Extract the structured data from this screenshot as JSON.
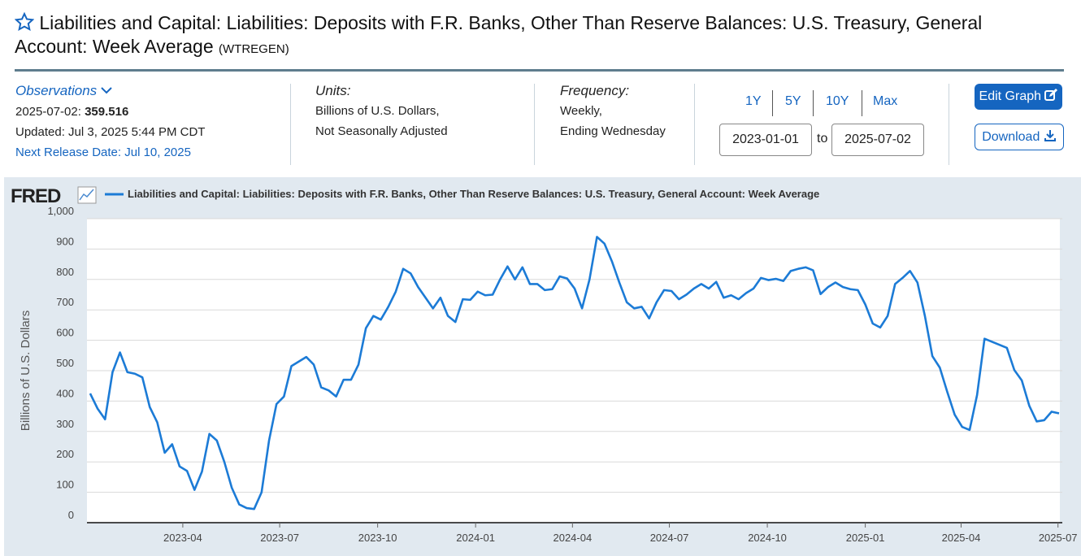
{
  "header": {
    "title": "Liabilities and Capital: Liabilities: Deposits with F.R. Banks, Other Than Reserve Balances: U.S. Treasury, General Account: Week Average",
    "series_id": "(WTREGEN)"
  },
  "meta": {
    "observations_label": "Observations",
    "latest_date": "2025-07-02:",
    "latest_value": "359.516",
    "updated": "Updated: Jul 3, 2025 5:44 PM CDT",
    "next_release": "Next Release Date: Jul 10, 2025",
    "units_label": "Units:",
    "units": [
      "Billions of U.S. Dollars,",
      "Not Seasonally Adjusted"
    ],
    "frequency_label": "Frequency:",
    "frequency": [
      "Weekly,",
      "Ending Wednesday"
    ]
  },
  "controls": {
    "ranges": [
      "1Y",
      "5Y",
      "10Y",
      "Max"
    ],
    "start": "2023-01-01",
    "to": "to",
    "end": "2025-07-02",
    "edit": "Edit Graph",
    "download": "Download"
  },
  "chart_data": {
    "type": "line",
    "logo": "FRED",
    "ylabel": "Billions of U.S. Dollars",
    "grid": true,
    "x": [
      "2023-01-04",
      "2023-01-11",
      "2023-01-18",
      "2023-01-25",
      "2023-02-01",
      "2023-02-08",
      "2023-02-15",
      "2023-02-22",
      "2023-03-01",
      "2023-03-08",
      "2023-03-15",
      "2023-03-22",
      "2023-03-29",
      "2023-04-05",
      "2023-04-12",
      "2023-04-19",
      "2023-04-26",
      "2023-05-03",
      "2023-05-10",
      "2023-05-17",
      "2023-05-24",
      "2023-05-31",
      "2023-06-07",
      "2023-06-14",
      "2023-06-21",
      "2023-06-28",
      "2023-07-05",
      "2023-07-12",
      "2023-07-19",
      "2023-07-26",
      "2023-08-02",
      "2023-08-09",
      "2023-08-16",
      "2023-08-23",
      "2023-08-30",
      "2023-09-06",
      "2023-09-13",
      "2023-09-20",
      "2023-09-27",
      "2023-10-04",
      "2023-10-11",
      "2023-10-18",
      "2023-10-25",
      "2023-11-01",
      "2023-11-08",
      "2023-11-15",
      "2023-11-22",
      "2023-11-29",
      "2023-12-06",
      "2023-12-13",
      "2023-12-20",
      "2023-12-27",
      "2024-01-03",
      "2024-01-10",
      "2024-01-17",
      "2024-01-24",
      "2024-01-31",
      "2024-02-07",
      "2024-02-14",
      "2024-02-21",
      "2024-02-28",
      "2024-03-06",
      "2024-03-13",
      "2024-03-20",
      "2024-03-27",
      "2024-04-03",
      "2024-04-10",
      "2024-04-17",
      "2024-04-24",
      "2024-05-01",
      "2024-05-08",
      "2024-05-15",
      "2024-05-22",
      "2024-05-29",
      "2024-06-05",
      "2024-06-12",
      "2024-06-19",
      "2024-06-26",
      "2024-07-03",
      "2024-07-10",
      "2024-07-17",
      "2024-07-24",
      "2024-07-31",
      "2024-08-07",
      "2024-08-14",
      "2024-08-21",
      "2024-08-28",
      "2024-09-04",
      "2024-09-11",
      "2024-09-18",
      "2024-09-25",
      "2024-10-02",
      "2024-10-09",
      "2024-10-16",
      "2024-10-23",
      "2024-10-30",
      "2024-11-06",
      "2024-11-13",
      "2024-11-20",
      "2024-11-27",
      "2024-12-04",
      "2024-12-11",
      "2024-12-18",
      "2024-12-25",
      "2025-01-01",
      "2025-01-08",
      "2025-01-15",
      "2025-01-22",
      "2025-01-29",
      "2025-02-05",
      "2025-02-12",
      "2025-02-19",
      "2025-02-26",
      "2025-03-05",
      "2025-03-12",
      "2025-03-19",
      "2025-03-26",
      "2025-04-02",
      "2025-04-09",
      "2025-04-16",
      "2025-04-23",
      "2025-04-30",
      "2025-05-07",
      "2025-05-14",
      "2025-05-21",
      "2025-05-28",
      "2025-06-04",
      "2025-06-11",
      "2025-06-18",
      "2025-06-25",
      "2025-07-02"
    ],
    "series": [
      {
        "name": "Liabilities and Capital: Liabilities: Deposits with F.R. Banks, Other Than Reserve Balances: U.S. Treasury, General Account: Week Average",
        "color": "#1c7bd6",
        "values": [
          425,
          375,
          340,
          495,
          560,
          495,
          490,
          478,
          380,
          330,
          230,
          258,
          185,
          170,
          108,
          168,
          292,
          270,
          200,
          115,
          60,
          48,
          45,
          100,
          270,
          390,
          415,
          515,
          530,
          545,
          520,
          445,
          435,
          415,
          470,
          470,
          520,
          640,
          680,
          668,
          710,
          760,
          835,
          820,
          775,
          740,
          705,
          740,
          680,
          660,
          735,
          733,
          760,
          748,
          750,
          800,
          843,
          800,
          840,
          785,
          785,
          765,
          768,
          810,
          803,
          770,
          705,
          800,
          940,
          918,
          860,
          790,
          725,
          705,
          710,
          672,
          725,
          765,
          762,
          735,
          750,
          770,
          785,
          770,
          792,
          740,
          748,
          735,
          755,
          770,
          805,
          798,
          802,
          795,
          828,
          835,
          840,
          830,
          752,
          775,
          790,
          775,
          768,
          765,
          718,
          655,
          642,
          680,
          785,
          805,
          828,
          790,
          680,
          548,
          510,
          430,
          355,
          315,
          305,
          420,
          605,
          595,
          585,
          575,
          502,
          468,
          385,
          333,
          337,
          365,
          359.516
        ]
      }
    ],
    "xlim": [
      "2023-01-01",
      "2025-07-02"
    ],
    "xticks": [
      {
        "value": "2023-04-01",
        "label": "2023-04"
      },
      {
        "value": "2023-07-01",
        "label": "2023-07"
      },
      {
        "value": "2023-10-01",
        "label": "2023-10"
      },
      {
        "value": "2024-01-01",
        "label": "2024-01"
      },
      {
        "value": "2024-04-01",
        "label": "2024-04"
      },
      {
        "value": "2024-07-01",
        "label": "2024-07"
      },
      {
        "value": "2024-10-01",
        "label": "2024-10"
      },
      {
        "value": "2025-01-01",
        "label": "2025-01"
      },
      {
        "value": "2025-04-01",
        "label": "2025-04"
      },
      {
        "value": "2025-07-01",
        "label": "2025-07"
      }
    ],
    "ylim": [
      0,
      1000
    ],
    "yticks": [
      0,
      100,
      200,
      300,
      400,
      500,
      600,
      700,
      800,
      900,
      {
        "value": 1000,
        "label": "1,000"
      }
    ]
  }
}
